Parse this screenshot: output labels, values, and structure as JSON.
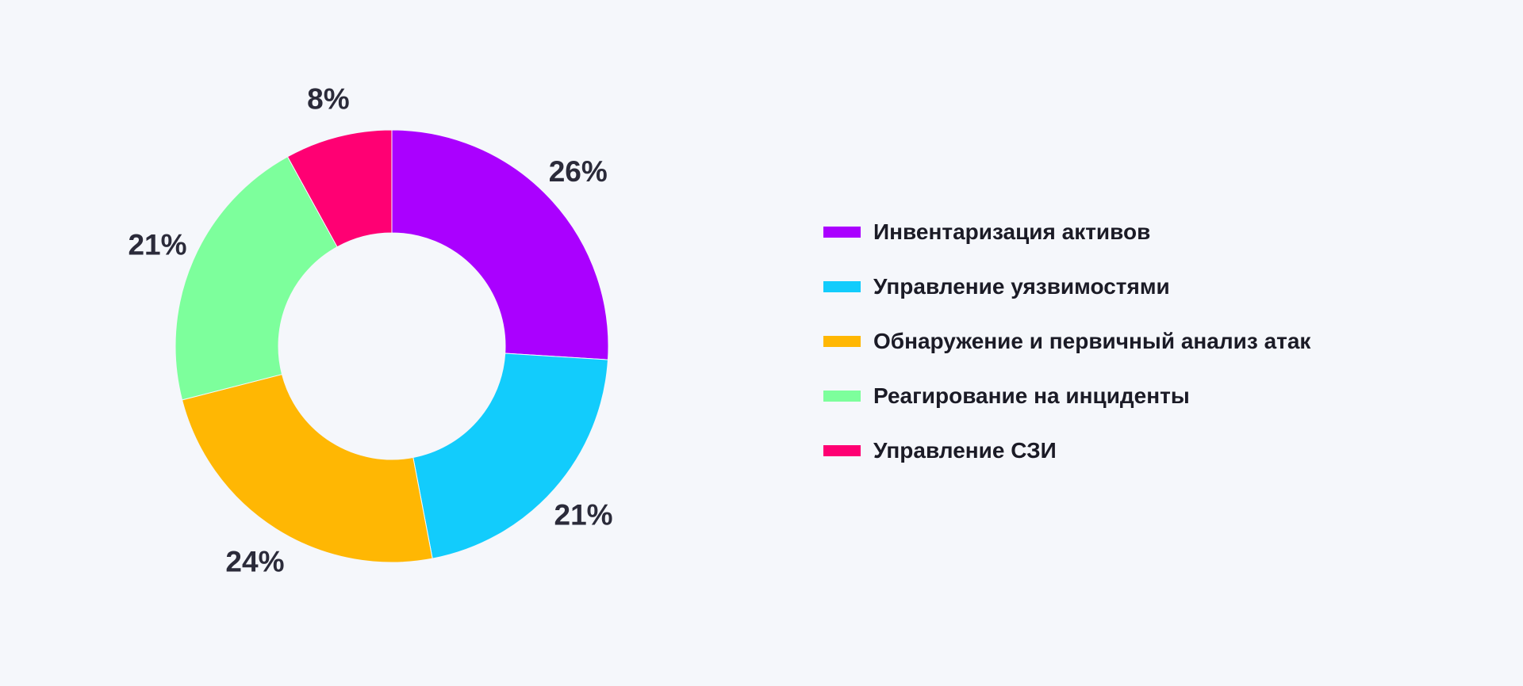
{
  "chart_data": {
    "type": "pie",
    "variant": "donut",
    "categories": [
      "Инвентаризация активов",
      "Управление уязвимостями",
      "Обнаружение и первичный анализ атак",
      "Реагирование на инциденты",
      "Управление СЗИ"
    ],
    "values": [
      26,
      21,
      24,
      21,
      8
    ],
    "value_labels": [
      "26%",
      "21%",
      "24%",
      "21%",
      "8%"
    ],
    "colors": [
      "#aa00ff",
      "#12ccfc",
      "#ffb703",
      "#7dff9c",
      "#ff0073"
    ],
    "legend_position": "right",
    "title": "",
    "xlabel": "",
    "ylabel": ""
  }
}
